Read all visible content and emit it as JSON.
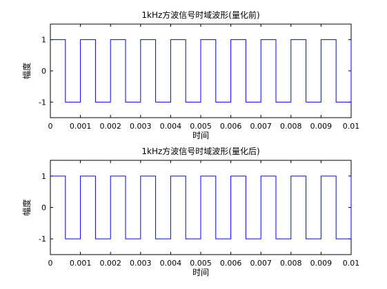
{
  "chart_data": [
    {
      "type": "line",
      "title": "1kHz方波信号时域波形(量化前)",
      "xlabel": "时间",
      "ylabel": "幅度",
      "xlim": [
        0,
        0.01
      ],
      "ylim": [
        -1.5,
        1.5
      ],
      "xticks": [
        0,
        0.001,
        0.002,
        0.003,
        0.004,
        0.005,
        0.006,
        0.007,
        0.008,
        0.009,
        0.01
      ],
      "xtick_labels": [
        "0",
        "0.001",
        "0.002",
        "0.003",
        "0.004",
        "0.005",
        "0.006",
        "0.007",
        "0.008",
        "0.009",
        "0.01"
      ],
      "yticks": [
        -1,
        0,
        1
      ],
      "ytick_labels": [
        "-1",
        "0",
        "1"
      ],
      "grid": false,
      "line_color": "#0000ff",
      "series": [
        {
          "frequency_hz": 1000,
          "amplitude": 1,
          "duty_cycle": 0.5,
          "x_start": 0,
          "x_end": 0.01
        }
      ]
    },
    {
      "type": "line",
      "title": "1kHz方波信号时域波形(量化后)",
      "xlabel": "时间",
      "ylabel": "幅度",
      "xlim": [
        0,
        0.01
      ],
      "ylim": [
        -1.5,
        1.5
      ],
      "xticks": [
        0,
        0.001,
        0.002,
        0.003,
        0.004,
        0.005,
        0.006,
        0.007,
        0.008,
        0.009,
        0.01
      ],
      "xtick_labels": [
        "0",
        "0.001",
        "0.002",
        "0.003",
        "0.004",
        "0.005",
        "0.006",
        "0.007",
        "0.008",
        "0.009",
        "0.01"
      ],
      "yticks": [
        -1,
        0,
        1
      ],
      "ytick_labels": [
        "-1",
        "0",
        "1"
      ],
      "grid": false,
      "line_color": "#0000ff",
      "series": [
        {
          "frequency_hz": 1000,
          "amplitude": 1,
          "duty_cycle": 0.5,
          "x_start": 0,
          "x_end": 0.01
        }
      ]
    }
  ]
}
